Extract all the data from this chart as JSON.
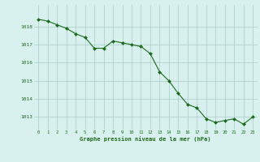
{
  "hours": [
    0,
    1,
    2,
    3,
    4,
    5,
    6,
    7,
    8,
    9,
    10,
    11,
    12,
    13,
    14,
    15,
    16,
    17,
    18,
    19,
    20,
    21,
    22,
    23
  ],
  "pressure": [
    1018.4,
    1018.3,
    1018.1,
    1017.9,
    1017.6,
    1017.4,
    1016.8,
    1016.8,
    1017.2,
    1017.1,
    1017.0,
    1016.9,
    1016.5,
    1015.5,
    1015.0,
    1014.3,
    1013.7,
    1013.5,
    1012.9,
    1012.7,
    1012.8,
    1012.9,
    1012.6,
    1013.0
  ],
  "line_color": "#1a6b1a",
  "marker_color": "#1a6b1a",
  "bg_color": "#d8f0ee",
  "grid_color": "#aaccc8",
  "xlabel": "Graphe pression niveau de la mer (hPa)",
  "xlabel_color": "#1a6b1a",
  "tick_color": "#1a6b1a",
  "ylim": [
    1012.3,
    1019.2
  ],
  "yticks": [
    1013,
    1014,
    1015,
    1016,
    1017,
    1018
  ],
  "xlim": [
    -0.5,
    23.5
  ],
  "xticks": [
    0,
    1,
    2,
    3,
    4,
    5,
    6,
    7,
    8,
    9,
    10,
    11,
    12,
    13,
    14,
    15,
    16,
    17,
    18,
    19,
    20,
    21,
    22,
    23
  ]
}
